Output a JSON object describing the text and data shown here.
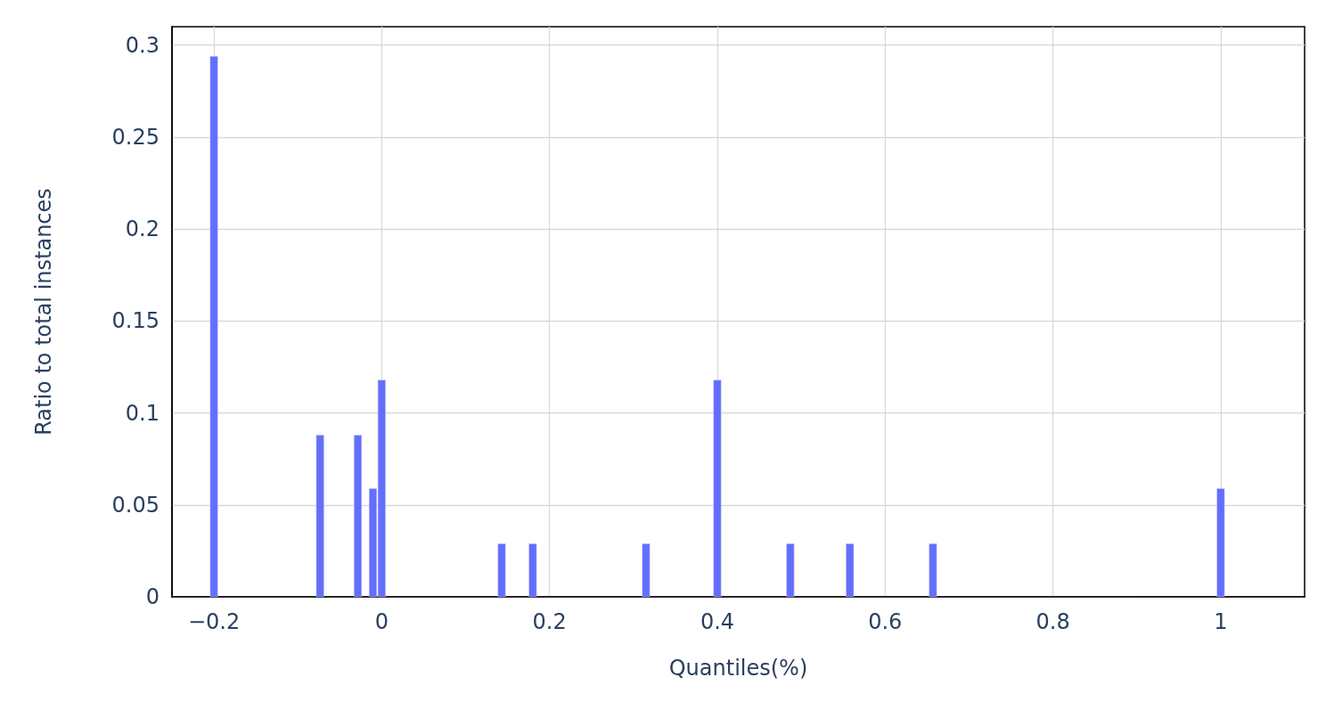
{
  "chart_data": {
    "type": "bar",
    "xlabel": "Quantiles(%)",
    "ylabel": "Ratio to total instances",
    "x": [
      -0.2,
      -0.0735,
      -0.0285,
      -0.0105,
      0.0,
      0.143,
      0.18,
      0.315,
      0.4,
      0.487,
      0.558,
      0.657,
      1.0
    ],
    "series": [
      {
        "color": "#636efa",
        "values": [
          0.294,
          0.088,
          0.088,
          0.059,
          0.118,
          0.029,
          0.029,
          0.029,
          0.118,
          0.029,
          0.029,
          0.029,
          0.059
        ]
      }
    ],
    "xlim": [
      -0.25,
      1.1
    ],
    "xticks": [
      {
        "value": -0.2,
        "label": "−0.2"
      },
      0,
      0.2,
      0.4,
      0.6,
      0.8,
      1
    ],
    "ylim": [
      0,
      0.31
    ],
    "yticks": [
      0,
      0.05,
      0.1,
      0.15,
      0.2,
      0.25,
      0.3
    ],
    "grid": true
  }
}
